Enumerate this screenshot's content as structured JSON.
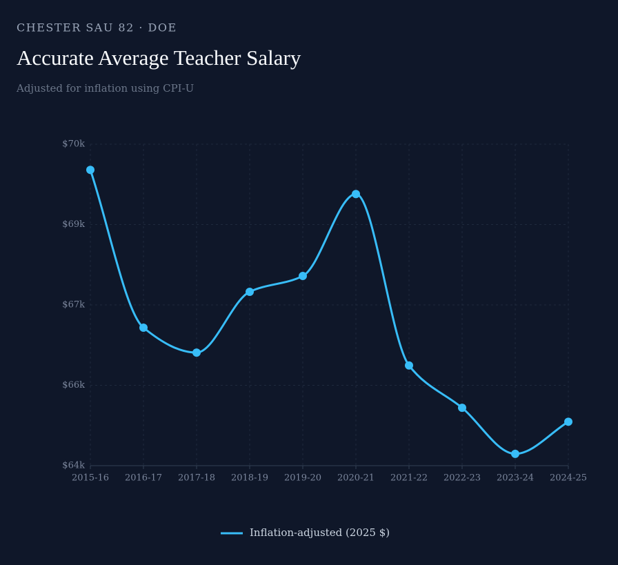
{
  "chart_data": {
    "type": "line",
    "eyebrow": "CHESTER SAU 82 · DOE",
    "title": "Accurate Average Teacher Salary",
    "subtitle": "Adjusted for inflation using CPI-U",
    "categories": [
      "2015-16",
      "2016-17",
      "2017-18",
      "2018-19",
      "2019-20",
      "2020-21",
      "2021-22",
      "2022-23",
      "2023-24",
      "2024-25"
    ],
    "series": [
      {
        "name": "Inflation-adjusted (2025 $)",
        "color": "#38bdf8",
        "values": [
          69520,
          66575,
          66110,
          67245,
          67540,
          69070,
          65870,
          65080,
          64220,
          64820
        ]
      }
    ],
    "ylim": [
      64000,
      70000
    ],
    "yticks": [
      {
        "value": 64000,
        "label": "$64k"
      },
      {
        "value": 65500,
        "label": "$66k"
      },
      {
        "value": 67000,
        "label": "$67k"
      },
      {
        "value": 68500,
        "label": "$69k"
      },
      {
        "value": 70000,
        "label": "$70k"
      }
    ],
    "grid": true
  }
}
